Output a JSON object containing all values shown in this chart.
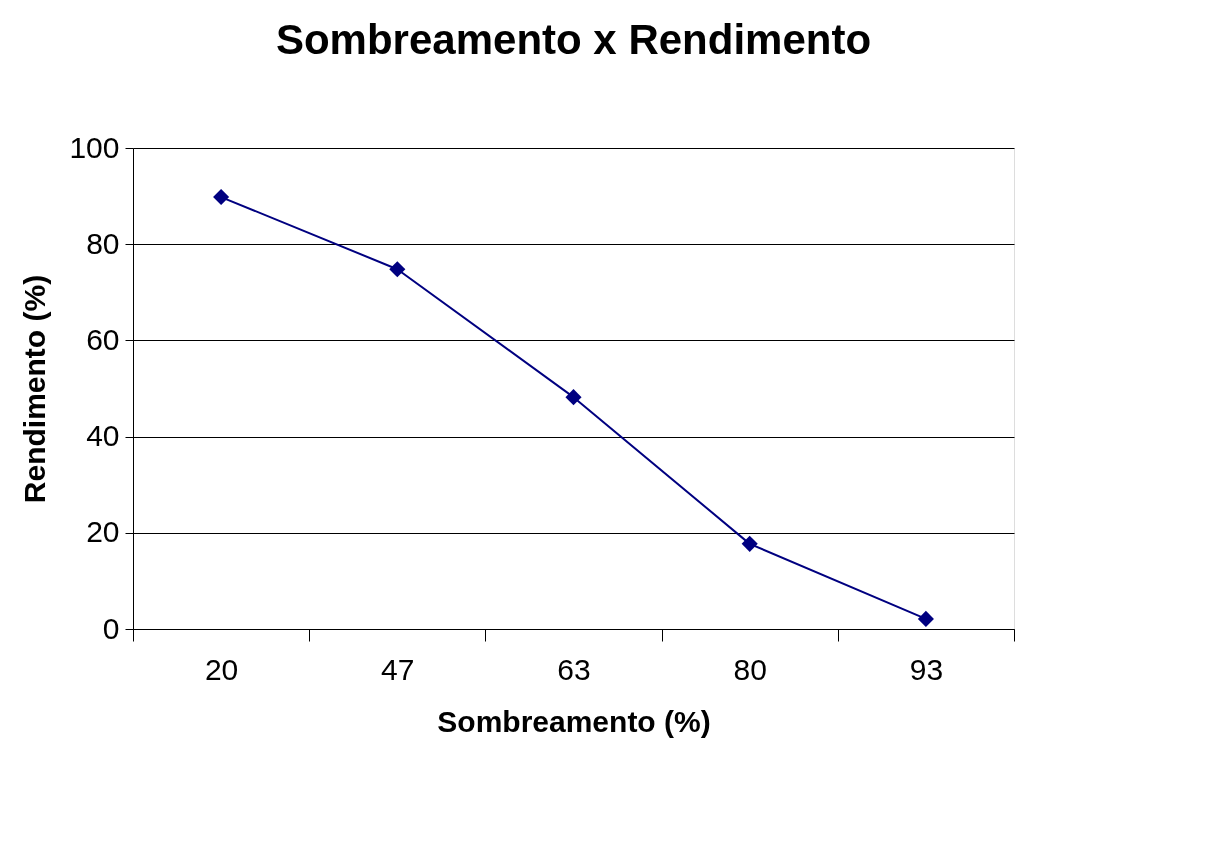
{
  "chart_data": {
    "type": "line",
    "title": "Sombreamento x Rendimento",
    "xlabel": "Sombreamento (%)",
    "ylabel": "Rendimento (%)",
    "categories": [
      "20",
      "47",
      "63",
      "80",
      "93"
    ],
    "series": [
      {
        "color": "#000080",
        "values": [
          89.8,
          74.8,
          48.2,
          17.7,
          2.1
        ]
      }
    ],
    "ylim": [
      0,
      100
    ],
    "yticks": [
      0,
      20,
      40,
      60,
      80,
      100
    ],
    "grid": "y",
    "marker": "diamond",
    "line_style": "solid",
    "legend": false
  }
}
